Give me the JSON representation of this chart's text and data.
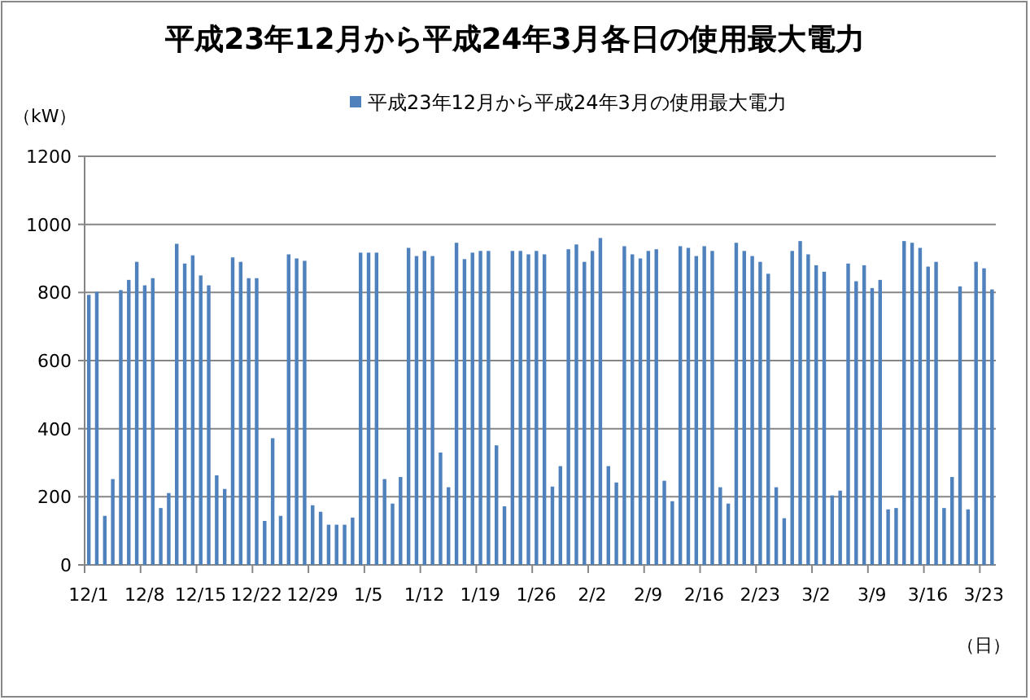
{
  "chart_data": {
    "type": "bar",
    "title": "平成23年12月から平成24年3月各日の使用最大電力",
    "ylabel": "（kW）",
    "xlabel": "（日）",
    "categories": [
      "12/1",
      null,
      null,
      null,
      null,
      null,
      null,
      "12/8",
      null,
      null,
      null,
      null,
      null,
      null,
      "12/15",
      null,
      null,
      null,
      null,
      null,
      null,
      "12/22",
      null,
      null,
      null,
      null,
      null,
      null,
      "12/29",
      null,
      null,
      null,
      null,
      null,
      null,
      "1/5",
      null,
      null,
      null,
      null,
      null,
      null,
      "1/12",
      null,
      null,
      null,
      null,
      null,
      null,
      "1/19",
      null,
      null,
      null,
      null,
      null,
      null,
      "1/26",
      null,
      null,
      null,
      null,
      null,
      null,
      "2/2",
      null,
      null,
      null,
      null,
      null,
      null,
      "2/9",
      null,
      null,
      null,
      null,
      null,
      null,
      "2/16",
      null,
      null,
      null,
      null,
      null,
      null,
      "2/23",
      null,
      null,
      null,
      null,
      null,
      null,
      "3/2",
      null,
      null,
      null,
      null,
      null,
      null,
      "3/9",
      null,
      null,
      null,
      null,
      null,
      null,
      "3/16",
      null,
      null,
      null,
      null,
      null,
      null,
      "3/23",
      null
    ],
    "series": [
      {
        "name": "平成23年12月から平成24年3月の使用最大電力",
        "color": "#4f81bd",
        "values": [
          793,
          802,
          144,
          252,
          807,
          837,
          890,
          821,
          842,
          167,
          211,
          943,
          885,
          909,
          850,
          821,
          263,
          223,
          903,
          890,
          842,
          842,
          129,
          372,
          144,
          912,
          900,
          893,
          175,
          156,
          118,
          118,
          118,
          139,
          917,
          917,
          917,
          252,
          180,
          258,
          931,
          907,
          922,
          907,
          330,
          228,
          946,
          898,
          917,
          922,
          922,
          351,
          172,
          922,
          922,
          912,
          922,
          912,
          230,
          290,
          927,
          941,
          890,
          922,
          960,
          290,
          242,
          936,
          912,
          900,
          922,
          927,
          247,
          187,
          936,
          931,
          907,
          936,
          922,
          228,
          180,
          946,
          922,
          907,
          890,
          855,
          228,
          137,
          922,
          951,
          912,
          880,
          861,
          204,
          218,
          885,
          833,
          880,
          813,
          837,
          163,
          167,
          951,
          946,
          931,
          876,
          890,
          167,
          258,
          818,
          163,
          890,
          871,
          809
        ]
      }
    ],
    "ylim": [
      0,
      1200
    ],
    "yticks": [
      0,
      200,
      400,
      600,
      800,
      1000,
      1200
    ],
    "grid": "y",
    "legend": "top"
  }
}
